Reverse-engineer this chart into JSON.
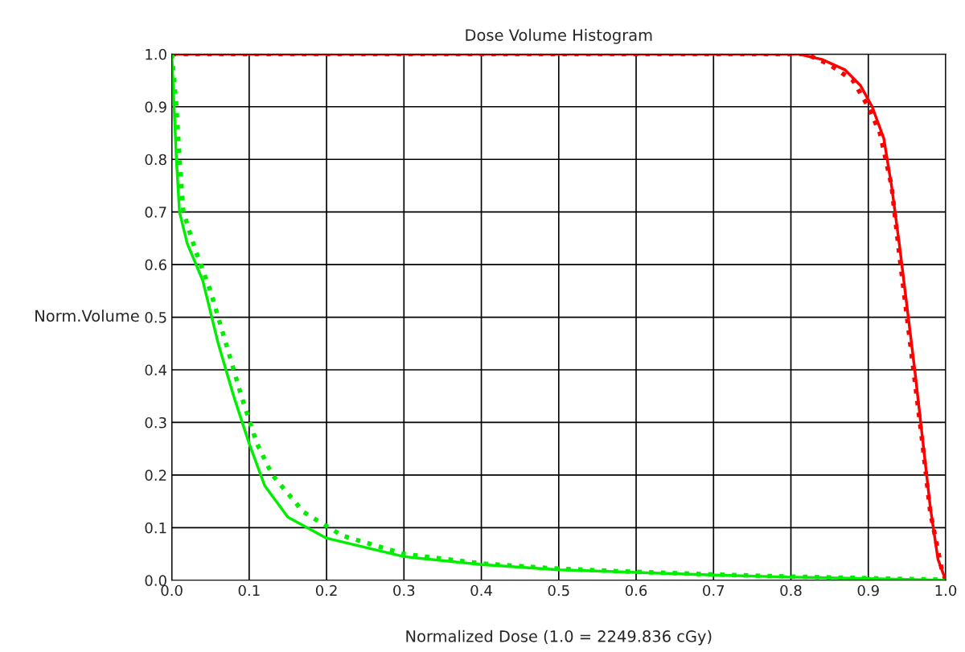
{
  "chart_data": {
    "type": "line",
    "title": "Dose Volume Histogram",
    "xlabel": "Normalized Dose (1.0 = 2249.836 cGy)",
    "ylabel": "Norm.Volume",
    "xlim": [
      0,
      1
    ],
    "ylim": [
      0,
      1
    ],
    "xticks": [
      {
        "value": 0,
        "label": "0.0"
      },
      0.1,
      0.2,
      0.3,
      0.4,
      0.5,
      0.6,
      0.7,
      0.8,
      0.9,
      {
        "value": 1,
        "label": "1.0"
      }
    ],
    "yticks": [
      {
        "value": 0,
        "label": "0.0"
      },
      0.1,
      0.2,
      0.3,
      0.4,
      0.5,
      0.6,
      0.7,
      0.8,
      0.9,
      {
        "value": 1,
        "label": "1.0"
      }
    ],
    "grid": true,
    "series": [
      {
        "color": "#ff0000",
        "line_style": "solid",
        "x": [
          0,
          0.81,
          0.84,
          0.87,
          0.89,
          0.905,
          0.92,
          0.93,
          0.94,
          0.95,
          0.96,
          0.97,
          0.98,
          0.99,
          1.0
        ],
        "values": [
          1,
          1,
          0.99,
          0.97,
          0.94,
          0.9,
          0.84,
          0.75,
          0.64,
          0.52,
          0.4,
          0.27,
          0.14,
          0.04,
          0
        ]
      },
      {
        "color": "#ff0000",
        "line_style": "dotted",
        "x": [
          0,
          0.82,
          0.85,
          0.88,
          0.9,
          0.915,
          0.93,
          0.94,
          0.95,
          0.96,
          0.97,
          0.98,
          0.995,
          1.0
        ],
        "values": [
          1,
          1,
          0.98,
          0.95,
          0.9,
          0.85,
          0.75,
          0.62,
          0.5,
          0.38,
          0.26,
          0.13,
          0.02,
          0
        ]
      },
      {
        "color": "#00ee00",
        "line_style": "solid",
        "x": [
          0,
          0.003,
          0.006,
          0.01,
          0.02,
          0.04,
          0.06,
          0.08,
          0.1,
          0.12,
          0.15,
          0.2,
          0.3,
          0.4,
          0.5,
          0.6,
          0.7,
          0.8,
          0.9,
          1.0
        ],
        "values": [
          1,
          0.9,
          0.8,
          0.7,
          0.64,
          0.57,
          0.45,
          0.35,
          0.26,
          0.18,
          0.12,
          0.08,
          0.045,
          0.03,
          0.02,
          0.015,
          0.01,
          0.006,
          0.003,
          0
        ]
      },
      {
        "color": "#00ee00",
        "line_style": "dotted",
        "x": [
          0,
          0.006,
          0.01,
          0.015,
          0.03,
          0.05,
          0.07,
          0.09,
          0.11,
          0.13,
          0.17,
          0.22,
          0.3,
          0.4,
          0.5,
          0.6,
          0.7,
          0.8,
          0.9,
          1.0
        ],
        "values": [
          1,
          0.9,
          0.8,
          0.7,
          0.63,
          0.55,
          0.45,
          0.35,
          0.26,
          0.2,
          0.13,
          0.085,
          0.05,
          0.032,
          0.022,
          0.016,
          0.011,
          0.007,
          0.004,
          0.001
        ]
      }
    ]
  }
}
